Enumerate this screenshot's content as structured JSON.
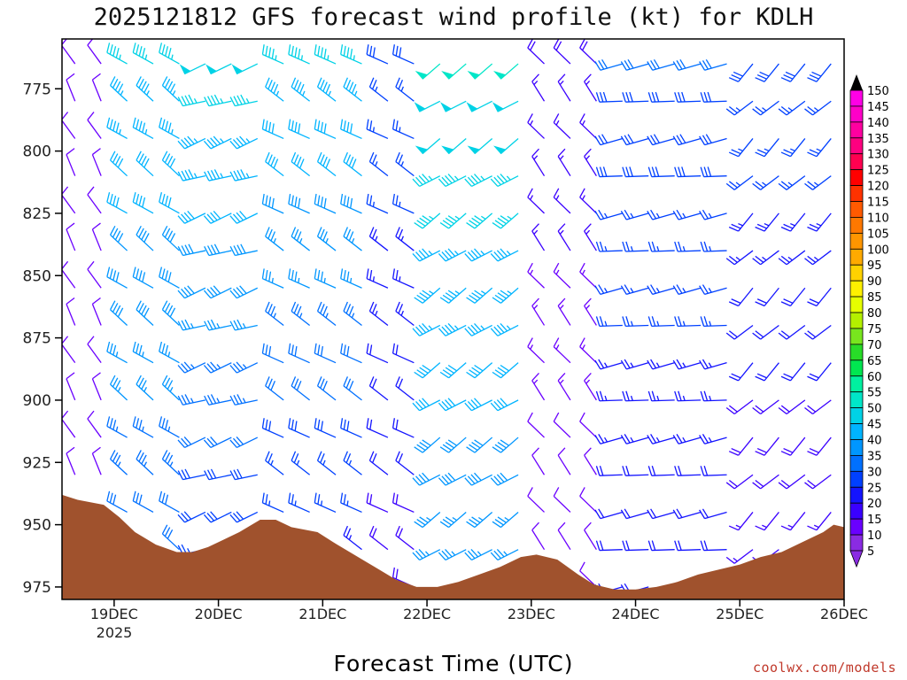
{
  "chart_data": {
    "type": "wind_barb_profile",
    "title": "2025121812 GFS forecast wind profile (kt) for KDLH",
    "xlabel": "Forecast Time (UTC)",
    "ylabel": "",
    "credit": "coolwx.com/models",
    "x_ticks": [
      "19DEC",
      "20DEC",
      "21DEC",
      "22DEC",
      "23DEC",
      "24DEC",
      "25DEC",
      "26DEC"
    ],
    "x_year_label": "2025",
    "y_ticks": [
      775,
      800,
      825,
      850,
      875,
      900,
      925,
      950,
      975
    ],
    "ylim_hpa": [
      980,
      755
    ],
    "xlim_days": [
      -0.5,
      7.0
    ],
    "colorbar": {
      "levels": [
        5,
        10,
        15,
        20,
        25,
        30,
        35,
        40,
        45,
        50,
        55,
        60,
        65,
        70,
        75,
        80,
        85,
        90,
        95,
        100,
        105,
        110,
        115,
        120,
        125,
        130,
        135,
        140,
        145,
        150
      ],
      "colors": [
        "#8a2be2",
        "#6a00ff",
        "#3a00ff",
        "#1414ff",
        "#0040ff",
        "#0070ff",
        "#0096ff",
        "#00b4ff",
        "#00d2e6",
        "#00e6c8",
        "#00f0a0",
        "#00e650",
        "#28dc28",
        "#78e61e",
        "#b4f000",
        "#e6ff00",
        "#fff000",
        "#ffd200",
        "#ffaa00",
        "#ff9600",
        "#ff7800",
        "#ff5a00",
        "#ff3200",
        "#ff0000",
        "#ff0050",
        "#ff0080",
        "#ff00a0",
        "#ff00c8",
        "#ff00e6",
        "#000000"
      ]
    },
    "terrain": {
      "color": "#a0522d",
      "surface_pressure_hpa": [
        [
          -0.5,
          938
        ],
        [
          -0.35,
          940
        ],
        [
          -0.1,
          942
        ],
        [
          0.05,
          947
        ],
        [
          0.2,
          953
        ],
        [
          0.4,
          958
        ],
        [
          0.6,
          961
        ],
        [
          0.75,
          961
        ],
        [
          0.9,
          959
        ],
        [
          1.05,
          956
        ],
        [
          1.2,
          953
        ],
        [
          1.4,
          948
        ],
        [
          1.55,
          948
        ],
        [
          1.7,
          951
        ],
        [
          1.95,
          953
        ],
        [
          2.1,
          957
        ],
        [
          2.3,
          962
        ],
        [
          2.5,
          967
        ],
        [
          2.7,
          972
        ],
        [
          2.9,
          975
        ],
        [
          3.1,
          975
        ],
        [
          3.3,
          973
        ],
        [
          3.5,
          970
        ],
        [
          3.7,
          967
        ],
        [
          3.9,
          963
        ],
        [
          4.05,
          962
        ],
        [
          4.25,
          964
        ],
        [
          4.45,
          970
        ],
        [
          4.6,
          974
        ],
        [
          4.8,
          976
        ],
        [
          5.0,
          976
        ],
        [
          5.2,
          975
        ],
        [
          5.4,
          973
        ],
        [
          5.6,
          970
        ],
        [
          5.8,
          968
        ],
        [
          6.0,
          966
        ],
        [
          6.2,
          963
        ],
        [
          6.4,
          961
        ],
        [
          6.6,
          957
        ],
        [
          6.8,
          953
        ],
        [
          6.9,
          950
        ],
        [
          7.0,
          951
        ]
      ]
    },
    "wind_field": {
      "time_start_day": -0.5,
      "time_step_hours": 6,
      "levels_hpa": [
        760,
        775,
        790,
        805,
        820,
        835,
        850,
        865,
        880,
        895,
        910,
        925,
        940,
        955,
        970
      ],
      "note": "barbs drawn every 6 h; direction in degrees (from), speed in kt",
      "direction_by_period": [
        {
          "start": -0.5,
          "end": 0.0,
          "dir": 330
        },
        {
          "start": 0.0,
          "end": 0.75,
          "dir": 305
        },
        {
          "start": 0.75,
          "end": 1.6,
          "dir": 250
        },
        {
          "start": 1.6,
          "end": 2.5,
          "dir": 300
        },
        {
          "start": 2.5,
          "end": 3.0,
          "dir": 300
        },
        {
          "start": 3.0,
          "end": 3.9,
          "dir": 235
        },
        {
          "start": 3.9,
          "end": 4.8,
          "dir": 320
        },
        {
          "start": 4.8,
          "end": 5.9,
          "dir": 260
        },
        {
          "start": 5.9,
          "end": 7.0,
          "dir": 225
        }
      ],
      "speed_by_period": [
        {
          "start": -0.5,
          "end": 0.0,
          "upper": 12,
          "lower": 10
        },
        {
          "start": 0.0,
          "end": 0.75,
          "upper": 45,
          "lower": 30
        },
        {
          "start": 0.75,
          "end": 1.6,
          "upper": 48,
          "lower": 25
        },
        {
          "start": 1.6,
          "end": 2.5,
          "upper": 45,
          "lower": 22
        },
        {
          "start": 2.5,
          "end": 3.0,
          "upper": 28,
          "lower": 18
        },
        {
          "start": 3.0,
          "end": 3.9,
          "upper": 50,
          "lower": 35
        },
        {
          "start": 3.9,
          "end": 4.8,
          "upper": 18,
          "lower": 10
        },
        {
          "start": 4.8,
          "end": 5.9,
          "upper": 30,
          "lower": 20
        },
        {
          "start": 5.9,
          "end": 7.0,
          "upper": 28,
          "lower": 15
        }
      ]
    }
  }
}
